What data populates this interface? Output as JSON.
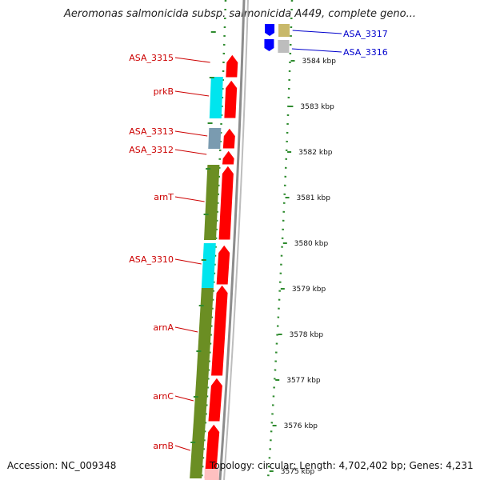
{
  "title": "Aeromonas salmonicida subsp. salmonicida A449, complete geno...",
  "accession": "Accession: NC_009348",
  "topology": "Topology: circular; Length: 4,702,402 bp; Genes: 4,231",
  "colors": {
    "forward_label": "#cc0000",
    "reverse_label": "#0000cc",
    "forward_cds": "#ff0000",
    "reverse_cds": "#0000ff",
    "cyan": "#00e5ee",
    "olive": "#6b8e23",
    "backbone": "#8c8c8c",
    "ticks": "#2e8b2e"
  },
  "genes_forward": [
    {
      "name": "ASA_3315"
    },
    {
      "name": "prkB"
    },
    {
      "name": "ASA_3313"
    },
    {
      "name": "ASA_3312"
    },
    {
      "name": "arnT"
    },
    {
      "name": "ASA_3310"
    },
    {
      "name": "arnA"
    },
    {
      "name": "arnC"
    },
    {
      "name": "arnB"
    }
  ],
  "genes_reverse": [
    {
      "name": "ASA_3317"
    },
    {
      "name": "ASA_3316"
    }
  ],
  "scale_labels": [
    "3584 kbp",
    "3583 kbp",
    "3582 kbp",
    "3581 kbp",
    "3580 kbp",
    "3579 kbp",
    "3578 kbp",
    "3577 kbp",
    "3576 kbp",
    "3575 kbp"
  ]
}
